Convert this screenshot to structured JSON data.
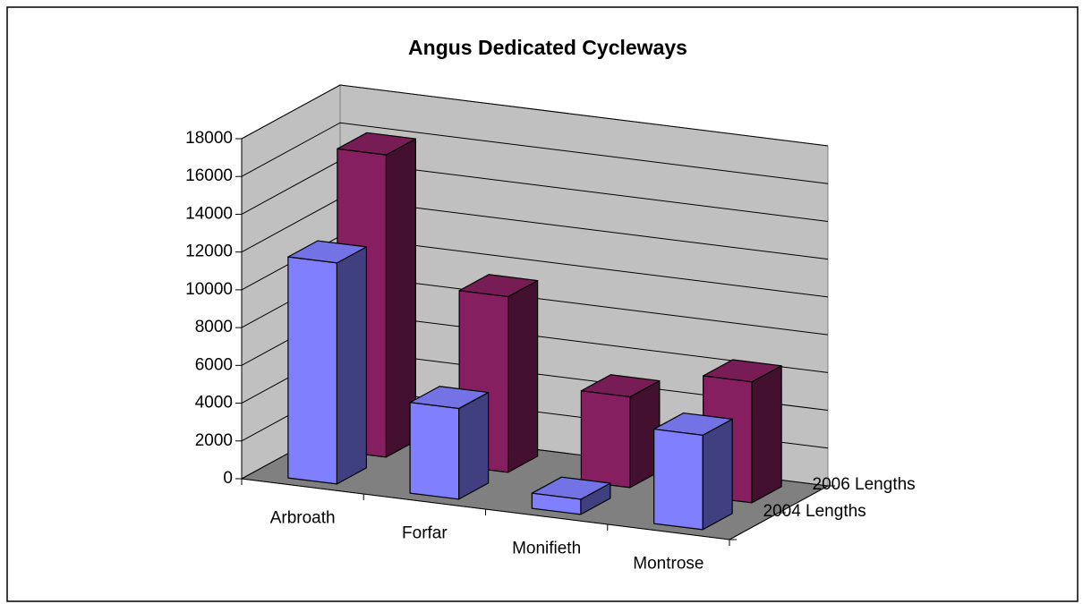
{
  "chart_data": {
    "type": "bar3d",
    "title": "Angus Dedicated Cycleways",
    "categories": [
      "Arbroath",
      "Forfar",
      "Monifieth",
      "Montrose"
    ],
    "series": [
      {
        "name": "2004 Lengths",
        "color": "#8080ff",
        "values": [
          11700,
          4800,
          800,
          5000
        ]
      },
      {
        "name": "2006 Lengths",
        "color": "#851f5f",
        "values": [
          16000,
          9300,
          4800,
          6400
        ]
      }
    ],
    "ylim": [
      0,
      18000
    ],
    "yticks": [
      0,
      2000,
      4000,
      6000,
      8000,
      10000,
      12000,
      14000,
      16000,
      18000
    ],
    "grid": true
  }
}
